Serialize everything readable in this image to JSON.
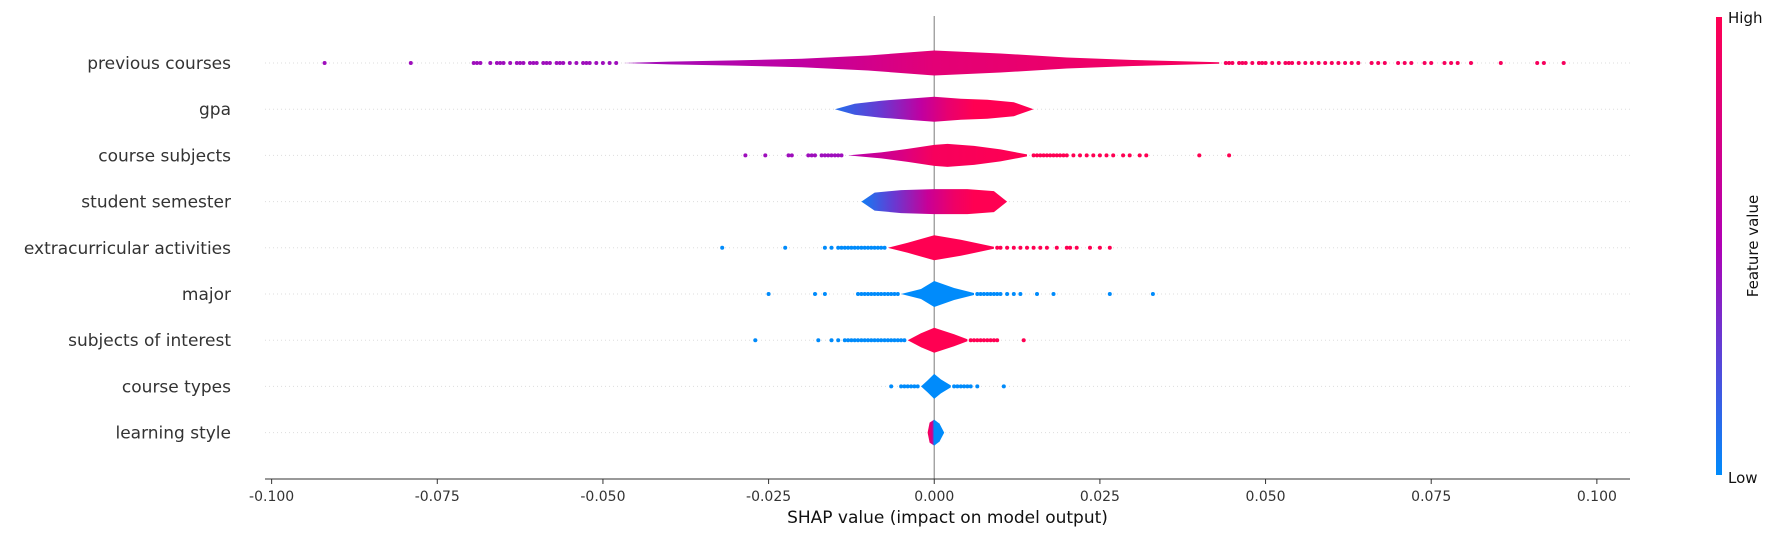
{
  "chart_data": {
    "type": "violin",
    "xlabel": "SHAP value (impact on model output)",
    "xlim": [
      -0.101,
      0.105
    ],
    "x_ticks": [
      "-0.100",
      "-0.075",
      "-0.050",
      "-0.025",
      "0.000",
      "0.025",
      "0.050",
      "0.075",
      "0.100"
    ],
    "x_tick_values": [
      -0.1,
      -0.075,
      -0.05,
      -0.025,
      0.0,
      0.025,
      0.05,
      0.075,
      0.1
    ],
    "colorbar": {
      "title": "Feature value",
      "high_label": "High",
      "low_label": "Low",
      "high_color": "#ff0052",
      "low_color": "#008bfb",
      "mid_color": "#b000b5"
    },
    "features": [
      {
        "name": "previous courses",
        "body_range": [
          -0.047,
          0.043
        ],
        "profile": [
          [
            -0.047,
            0.0
          ],
          [
            -0.04,
            1.4
          ],
          [
            -0.03,
            2.6
          ],
          [
            -0.02,
            4.2
          ],
          [
            -0.01,
            7.5
          ],
          [
            0.0,
            12.5
          ],
          [
            0.01,
            9.5
          ],
          [
            0.02,
            5.5
          ],
          [
            0.03,
            3.0
          ],
          [
            0.043,
            0.8
          ]
        ],
        "color_stops": [
          [
            -0.047,
            0.45
          ],
          [
            -0.02,
            0.6
          ],
          [
            0.0,
            0.82
          ],
          [
            0.02,
            0.88
          ],
          [
            0.043,
            0.95
          ]
        ],
        "low_outliers": [
          -0.092,
          -0.079,
          -0.0695,
          -0.069,
          -0.0685,
          -0.067,
          -0.066,
          -0.0655,
          -0.065,
          -0.064,
          -0.063,
          -0.0625,
          -0.062,
          -0.061,
          -0.0605,
          -0.06,
          -0.059,
          -0.0585,
          -0.058,
          -0.057,
          -0.0565,
          -0.056,
          -0.055,
          -0.054,
          -0.053,
          -0.0525,
          -0.052,
          -0.051,
          -0.05,
          -0.049,
          -0.048
        ],
        "high_outliers": [
          0.044,
          0.0445,
          0.045,
          0.046,
          0.0465,
          0.047,
          0.048,
          0.049,
          0.0495,
          0.05,
          0.051,
          0.052,
          0.053,
          0.0535,
          0.054,
          0.055,
          0.056,
          0.057,
          0.058,
          0.059,
          0.06,
          0.061,
          0.062,
          0.063,
          0.064,
          0.066,
          0.067,
          0.068,
          0.07,
          0.071,
          0.072,
          0.074,
          0.075,
          0.077,
          0.078,
          0.079,
          0.081,
          0.0855,
          0.091,
          0.092,
          0.095
        ]
      },
      {
        "name": "gpa",
        "body_range": [
          -0.015,
          0.015
        ],
        "profile": [
          [
            -0.015,
            0.0
          ],
          [
            -0.012,
            5.5
          ],
          [
            -0.008,
            8.5
          ],
          [
            -0.004,
            10.5
          ],
          [
            0.0,
            12.5
          ],
          [
            0.004,
            10.5
          ],
          [
            0.008,
            9.5
          ],
          [
            0.012,
            7.0
          ],
          [
            0.015,
            0.0
          ]
        ],
        "color_stops": [
          [
            -0.015,
            0.1
          ],
          [
            -0.008,
            0.3
          ],
          [
            -0.002,
            0.6
          ],
          [
            0.002,
            0.85
          ],
          [
            0.006,
            1.0
          ],
          [
            0.015,
            1.0
          ]
        ],
        "low_outliers": [],
        "high_outliers": []
      },
      {
        "name": "course subjects",
        "body_range": [
          -0.013,
          0.014
        ],
        "profile": [
          [
            -0.013,
            0.0
          ],
          [
            -0.008,
            3.0
          ],
          [
            -0.004,
            6.5
          ],
          [
            0.0,
            10.5
          ],
          [
            0.002,
            11.5
          ],
          [
            0.006,
            9.5
          ],
          [
            0.01,
            6.0
          ],
          [
            0.014,
            1.0
          ]
        ],
        "color_stops": [
          [
            -0.013,
            0.55
          ],
          [
            -0.005,
            0.75
          ],
          [
            0.0,
            0.95
          ],
          [
            0.014,
            1.0
          ]
        ],
        "low_outliers": [
          -0.0285,
          -0.0255,
          -0.022,
          -0.0215,
          -0.019,
          -0.0185,
          -0.018,
          -0.017,
          -0.0165,
          -0.016,
          -0.0155,
          -0.015,
          -0.0145,
          -0.014
        ],
        "high_outliers": [
          0.015,
          0.0155,
          0.016,
          0.0165,
          0.017,
          0.0175,
          0.018,
          0.0185,
          0.019,
          0.0195,
          0.02,
          0.021,
          0.022,
          0.023,
          0.024,
          0.025,
          0.026,
          0.027,
          0.0285,
          0.0295,
          0.031,
          0.032,
          0.04,
          0.0445
        ]
      },
      {
        "name": "student semester",
        "body_range": [
          -0.011,
          0.011
        ],
        "profile": [
          [
            -0.011,
            0.0
          ],
          [
            -0.009,
            9.0
          ],
          [
            -0.005,
            11.5
          ],
          [
            0.0,
            12.5
          ],
          [
            0.005,
            12.5
          ],
          [
            0.009,
            10.5
          ],
          [
            0.011,
            0.0
          ]
        ],
        "color_stops": [
          [
            -0.011,
            0.05
          ],
          [
            -0.006,
            0.3
          ],
          [
            -0.001,
            0.65
          ],
          [
            0.003,
            0.9
          ],
          [
            0.006,
            1.0
          ],
          [
            0.011,
            1.0
          ]
        ],
        "low_outliers": [],
        "high_outliers": []
      },
      {
        "name": "extracurricular activities",
        "body_range": [
          -0.007,
          0.009
        ],
        "profile": [
          [
            -0.007,
            0.0
          ],
          [
            -0.004,
            5.0
          ],
          [
            0.0,
            12.5
          ],
          [
            0.004,
            8.0
          ],
          [
            0.009,
            1.0
          ]
        ],
        "color_stops": [
          [
            -0.007,
            1.0
          ],
          [
            0.009,
            1.0
          ]
        ],
        "low_outliers": [
          -0.032,
          -0.0225,
          -0.0165,
          -0.0155,
          -0.0145,
          -0.014,
          -0.0135,
          -0.013,
          -0.0125,
          -0.012,
          -0.0115,
          -0.011,
          -0.0105,
          -0.01,
          -0.0095,
          -0.009,
          -0.0085,
          -0.008,
          -0.0075
        ],
        "high_outliers": [
          0.0095,
          0.01,
          0.011,
          0.012,
          0.013,
          0.014,
          0.015,
          0.016,
          0.017,
          0.0185,
          0.02,
          0.0205,
          0.0215,
          0.0235,
          0.025,
          0.0265
        ]
      },
      {
        "name": "major",
        "body_range": [
          -0.005,
          0.006
        ],
        "profile": [
          [
            -0.005,
            0.0
          ],
          [
            -0.002,
            5.0
          ],
          [
            0.0,
            13.0
          ],
          [
            0.003,
            6.0
          ],
          [
            0.006,
            1.0
          ]
        ],
        "color_stops": [
          [
            -0.005,
            0.0
          ],
          [
            0.006,
            0.0
          ]
        ],
        "low_outliers": [
          -0.025,
          -0.018,
          -0.0165,
          -0.0115,
          -0.011,
          -0.0105,
          -0.01,
          -0.0095,
          -0.009,
          -0.0085,
          -0.008,
          -0.0075,
          -0.007,
          -0.0065,
          -0.006,
          -0.0055
        ],
        "high_outliers": [
          0.0065,
          0.007,
          0.0075,
          0.008,
          0.0085,
          0.009,
          0.0095,
          0.01,
          0.011,
          0.012,
          0.013,
          0.0155,
          0.018,
          0.0265,
          0.033
        ]
      },
      {
        "name": "subjects of interest",
        "body_range": [
          -0.004,
          0.005
        ],
        "profile": [
          [
            -0.004,
            0.0
          ],
          [
            -0.002,
            7.0
          ],
          [
            0.0,
            12.5
          ],
          [
            0.003,
            6.0
          ],
          [
            0.005,
            1.0
          ]
        ],
        "color_stops": [
          [
            -0.004,
            1.0
          ],
          [
            0.005,
            1.0
          ]
        ],
        "low_outliers": [
          -0.027,
          -0.0175,
          -0.0155,
          -0.0145,
          -0.0135,
          -0.013,
          -0.0125,
          -0.012,
          -0.0115,
          -0.011,
          -0.0105,
          -0.01,
          -0.0095,
          -0.009,
          -0.0085,
          -0.008,
          -0.0075,
          -0.007,
          -0.0065,
          -0.006,
          -0.0055,
          -0.005,
          -0.0045
        ],
        "high_outliers": [
          0.0055,
          0.006,
          0.0065,
          0.007,
          0.0075,
          0.008,
          0.0085,
          0.009,
          0.0095,
          0.0135
        ]
      },
      {
        "name": "course types",
        "body_range": [
          -0.002,
          0.0025
        ],
        "profile": [
          [
            -0.002,
            0.0
          ],
          [
            -0.001,
            6.0
          ],
          [
            0.0,
            12.5
          ],
          [
            0.001,
            7.0
          ],
          [
            0.0025,
            1.0
          ]
        ],
        "color_stops": [
          [
            -0.002,
            0.0
          ],
          [
            0.0025,
            0.0
          ]
        ],
        "low_outliers": [
          -0.0065,
          -0.005,
          -0.0045,
          -0.004,
          -0.0035,
          -0.003,
          -0.0025
        ],
        "high_outliers": [
          0.003,
          0.0035,
          0.004,
          0.0045,
          0.005,
          0.0055,
          0.0065,
          0.0105
        ]
      },
      {
        "name": "learning style",
        "body_range": [
          -0.001,
          0.0015
        ],
        "profile": [
          [
            -0.001,
            0.0
          ],
          [
            -0.0007,
            10.0
          ],
          [
            0.0,
            13.0
          ],
          [
            0.0008,
            9.0
          ],
          [
            0.0015,
            0.0
          ]
        ],
        "color_stops": [
          [
            -0.001,
            1.0
          ],
          [
            -0.0003,
            0.7
          ],
          [
            0.0,
            0.0
          ],
          [
            0.0015,
            0.0
          ]
        ],
        "low_outliers": [],
        "high_outliers": []
      }
    ]
  }
}
